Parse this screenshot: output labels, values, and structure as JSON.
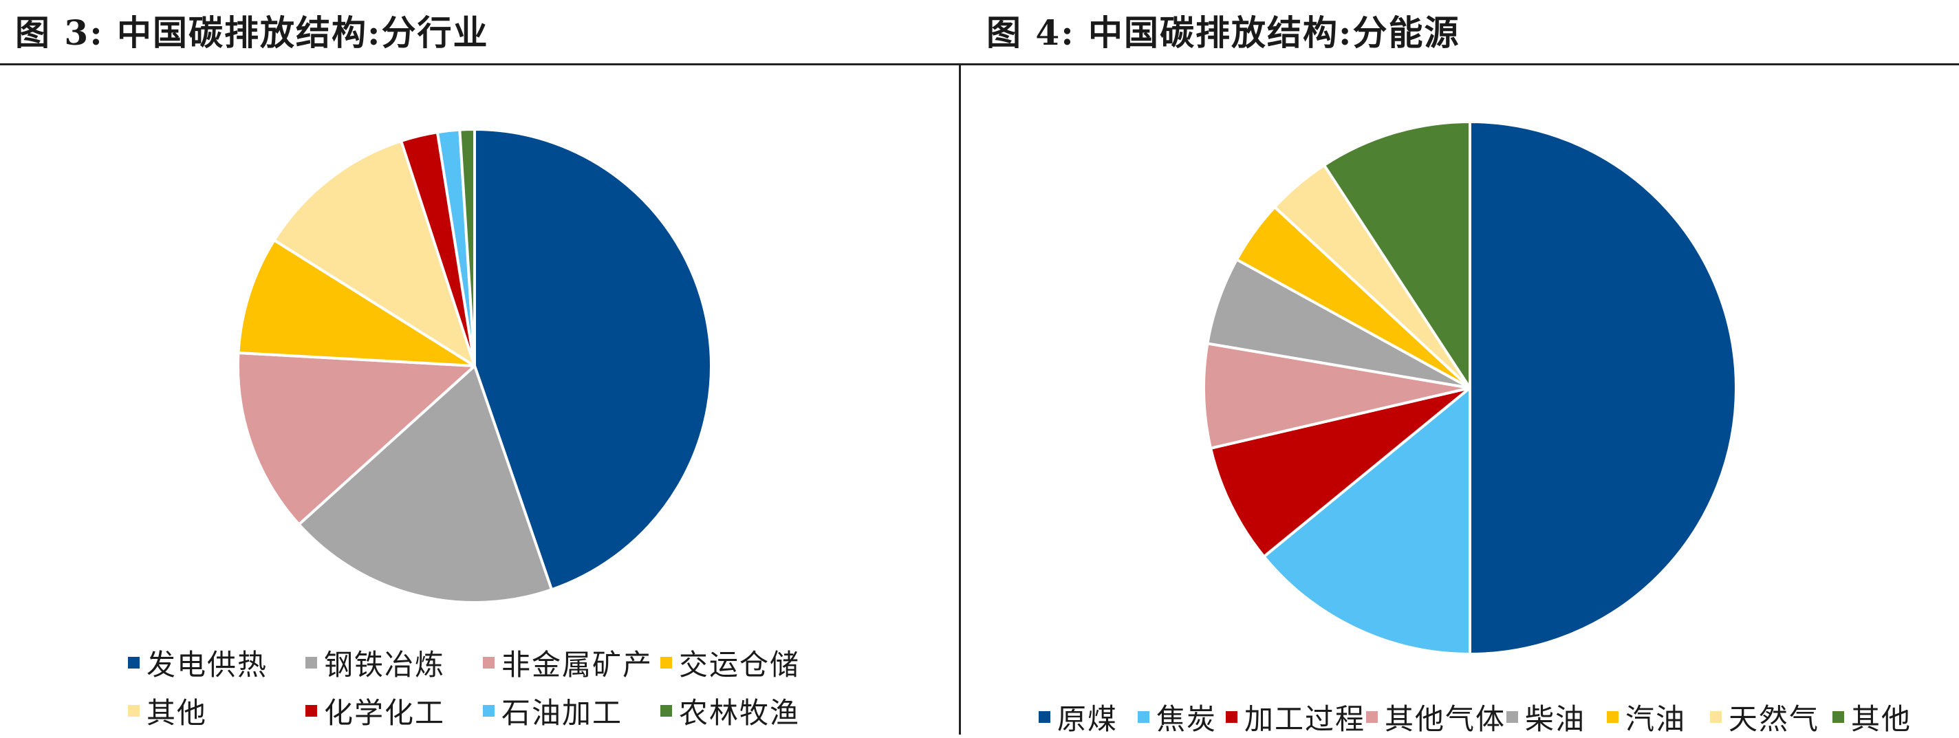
{
  "chart_data": [
    {
      "type": "pie",
      "title": "图 3:  中国碳排放结构:分行业",
      "legend_position": "bottom",
      "categories": [
        "发电供热",
        "钢铁冶炼",
        "非金属矿产",
        "交运仓储",
        "其他",
        "化学化工",
        "石油加工",
        "农林牧渔"
      ],
      "values": [
        44.5,
        18.5,
        12.5,
        8,
        11,
        2.5,
        1.5,
        1
      ],
      "unit": "%",
      "colors": [
        "#004a90",
        "#a6a6a6",
        "#dd9a9b",
        "#fec200",
        "#fee49a",
        "#c00000",
        "#56c1f4",
        "#4e8132"
      ]
    },
    {
      "type": "pie",
      "title": "图 4:  中国碳排放结构:分能源",
      "legend_position": "bottom",
      "categories": [
        "原煤",
        "焦炭",
        "加工过程",
        "其他气体",
        "柴油",
        "汽油",
        "天然气",
        "其他"
      ],
      "values": [
        51.5,
        14.5,
        7.5,
        6.5,
        5.5,
        4,
        4,
        9.5
      ],
      "unit": "%",
      "colors": [
        "#004a90",
        "#56c1f4",
        "#c00000",
        "#dd9a9b",
        "#a6a6a6",
        "#fec200",
        "#fee49a",
        "#4e8132"
      ]
    }
  ]
}
